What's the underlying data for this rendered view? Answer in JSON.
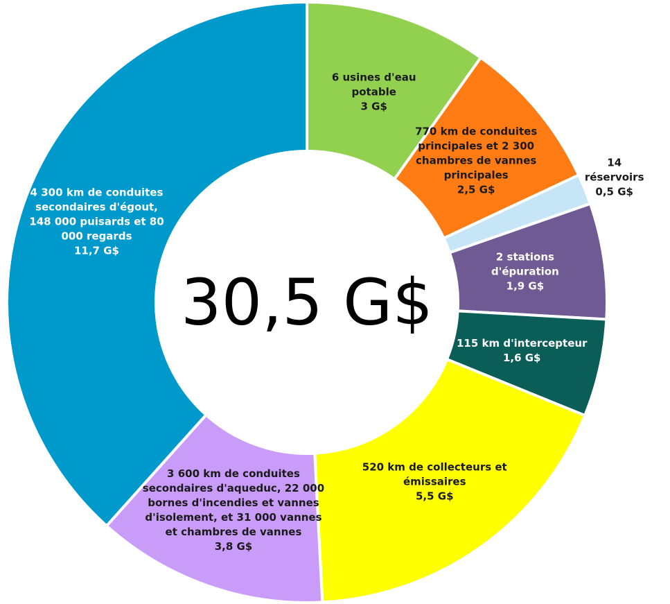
{
  "chart_data": {
    "type": "donut",
    "center_label": "30,5 G$",
    "categories": [
      "6 usines d'eau potable",
      "770 km de conduites principales et 2 300 chambres de vannes principales",
      "14 réservoirs",
      "2 stations d'épuration",
      "115 km d'intercepteur",
      "520 km de collecteurs et émissaires",
      "3 600 km de conduites secondaires d'aqueduc, 22 000 bornes d'incendies et vannes d'isolement, et 31 000 vannes et chambres de vannes",
      "4 300 km de conduites secondaires d'égout, 148 000 puisards et 80 000 regards"
    ],
    "values": [
      3,
      2.5,
      0.5,
      1.9,
      1.6,
      5.5,
      3.8,
      11.7
    ],
    "value_labels": [
      "3 G$",
      "2,5 G$",
      "0,5 G$",
      "1,9 G$",
      "1,6 G$",
      "5,5 G$",
      "3,8 G$",
      "11,7 G$"
    ],
    "colors": [
      "#92d050",
      "#ff7c14",
      "#c6e6f7",
      "#6f5a94",
      "#0b5e57",
      "#ffff00",
      "#c99cf9",
      "#0099cc"
    ]
  }
}
